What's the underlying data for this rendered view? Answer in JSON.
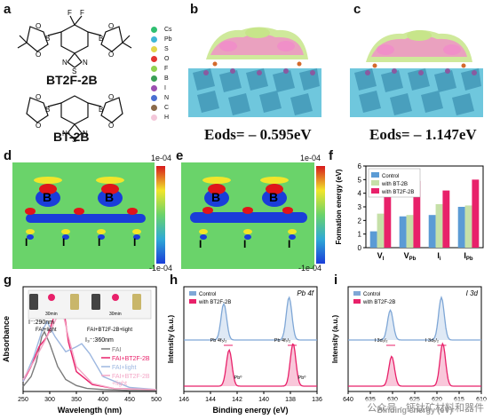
{
  "panels": {
    "a": {
      "label": "a",
      "molecule_top": "BT2F-2B",
      "molecule_bottom": "BT-2B",
      "atoms_top": [
        "F",
        "F",
        "B",
        "B",
        "O",
        "O",
        "O",
        "O",
        "N",
        "N",
        "S"
      ],
      "atoms_bottom": [
        "B",
        "B",
        "O",
        "O",
        "O",
        "O",
        "N",
        "N",
        "S"
      ]
    },
    "b": {
      "label": "b",
      "energy_label": "Eods= – 0.595eV",
      "legend": [
        "Cs",
        "Pb",
        "S",
        "O",
        "F",
        "B",
        "I",
        "N",
        "C",
        "H"
      ],
      "legend_colors": [
        "#2fbf71",
        "#3fb6d6",
        "#e3d64a",
        "#e3342f",
        "#8fd14f",
        "#3a9e55",
        "#9b4fb0",
        "#4a6fd1",
        "#8a6a4a",
        "#f3c7d9"
      ]
    },
    "c": {
      "label": "c",
      "energy_label": "Eods= – 1.147eV"
    },
    "d": {
      "label": "d",
      "scale_max": "1e-04",
      "scale_min": "-1e-04",
      "atom_labels": [
        "B",
        "B",
        "I",
        "I",
        "I",
        "I"
      ]
    },
    "e": {
      "label": "e",
      "scale_max": "1e-04",
      "scale_min": "-1e-04",
      "atom_labels": [
        "B",
        "B",
        "I",
        "I",
        "I"
      ]
    },
    "f": {
      "label": "f",
      "chart_data": {
        "type": "bar",
        "ylabel": "Formation energy (eV)",
        "ylim": [
          0,
          6
        ],
        "yticks": [
          "0",
          "1",
          "2",
          "3",
          "4",
          "5",
          "6"
        ],
        "categories": [
          "VI",
          "VPb",
          "Ii",
          "IPb"
        ],
        "category_main": [
          "V",
          "V",
          "I",
          "I"
        ],
        "category_sub": [
          "I",
          "Pb",
          "i",
          "Pb"
        ],
        "legend_position": "top-left",
        "series": [
          {
            "name": "Control",
            "color": "#5b9bd5",
            "values": [
              1.2,
              2.3,
              2.4,
              3.0
            ]
          },
          {
            "name": "with BT-2B",
            "color": "#c6e0a8",
            "values": [
              2.5,
              2.4,
              3.2,
              3.1
            ]
          },
          {
            "name": "with BT2F-2B",
            "color": "#e8216a",
            "values": [
              3.8,
              4.9,
              4.2,
              5.0
            ]
          }
        ]
      }
    },
    "g": {
      "label": "g",
      "chart_data": {
        "type": "line",
        "xlabel": "Wavelength (nm)",
        "ylabel": "Absorbance",
        "xlim": [
          250,
          500
        ],
        "xticks": [
          "250",
          "300",
          "350",
          "400",
          "450",
          "500"
        ],
        "annotations": [
          "I⁻:290nm",
          "I₃⁻:360nm"
        ],
        "inset": {
          "time_labels": [
            "30min",
            "30min"
          ],
          "captions": [
            "FAI+light",
            "FAI+BT2F-2B+light"
          ]
        },
        "series": [
          {
            "name": "FAI",
            "color": "#7a7a7a",
            "x": [
              250,
              265,
              275,
              285,
              290,
              300,
              315,
              330,
              350,
              370,
              400,
              450,
              500
            ],
            "y": [
              0.05,
              0.15,
              0.3,
              0.55,
              0.6,
              0.48,
              0.25,
              0.12,
              0.06,
              0.03,
              0.02,
              0.01,
              0.01
            ]
          },
          {
            "name": "FAI+BT2F-2B",
            "color": "#e8216a",
            "x": [
              250,
              265,
              280,
              295,
              305,
              315,
              320,
              325,
              335,
              350,
              380,
              420,
              500
            ],
            "y": [
              0.1,
              0.25,
              0.45,
              0.55,
              0.7,
              0.9,
              0.95,
              0.88,
              0.5,
              0.2,
              0.07,
              0.03,
              0.02
            ]
          },
          {
            "name": "FAI+light",
            "color": "#9db7e0",
            "x": [
              250,
              270,
              285,
              295,
              310,
              330,
              350,
              360,
              375,
              400,
              450,
              500
            ],
            "y": [
              0.1,
              0.35,
              0.6,
              0.7,
              0.55,
              0.4,
              0.45,
              0.48,
              0.38,
              0.15,
              0.04,
              0.02
            ]
          },
          {
            "name": "FAI+BT2F-2B\n+light",
            "color": "#f3a6c6",
            "x": [
              250,
              270,
              290,
              305,
              318,
              325,
              335,
              350,
              380,
              420,
              500
            ],
            "y": [
              0.12,
              0.3,
              0.5,
              0.65,
              0.8,
              0.78,
              0.55,
              0.25,
              0.08,
              0.03,
              0.02
            ]
          }
        ]
      }
    },
    "h": {
      "label": "h",
      "chart_data": {
        "type": "line",
        "title": "Pb 4f",
        "xlabel": "Binding energy (eV)",
        "ylabel": "Intensity (a.u.)",
        "xlim": [
          146,
          136
        ],
        "xticks": [
          "146",
          "144",
          "142",
          "140",
          "138",
          "136"
        ],
        "peak_labels": [
          "Pb 4f₅/₂",
          "Pb 4f₇/₂",
          "Pb⁰",
          "Pb⁰"
        ],
        "series": [
          {
            "name": "Control",
            "color": "#7fa7d6",
            "peaks": [
              143.0,
              138.1
            ],
            "heights": [
              0.85,
              1.0
            ],
            "offset": 1.3
          },
          {
            "name": "with BT2F-2B",
            "color": "#e8216a",
            "peaks": [
              142.6,
              137.8
            ],
            "heights": [
              0.85,
              1.0
            ],
            "offset": 0
          }
        ]
      }
    },
    "i": {
      "label": "i",
      "chart_data": {
        "type": "line",
        "title": "I 3d",
        "xlabel": "Binding energy (eV)",
        "ylabel": "Intensity (a.u.)",
        "xlim": [
          640,
          610
        ],
        "xticks": [
          "640",
          "635",
          "630",
          "625",
          "620",
          "615",
          "610"
        ],
        "peak_labels": [
          "I 3d₃/₂",
          "I 3d₅/₂"
        ],
        "series": [
          {
            "name": "Control",
            "color": "#7fa7d6",
            "peaks": [
              630.5,
              619.0
            ],
            "heights": [
              0.7,
              1.0
            ],
            "offset": 1.3
          },
          {
            "name": "with BT2F-2B",
            "color": "#e8216a",
            "peaks": [
              630.2,
              618.7
            ],
            "heights": [
              0.7,
              1.0
            ],
            "offset": 0
          }
        ]
      }
    }
  },
  "watermark": "公众号 · 钙钛矿材料和器件"
}
